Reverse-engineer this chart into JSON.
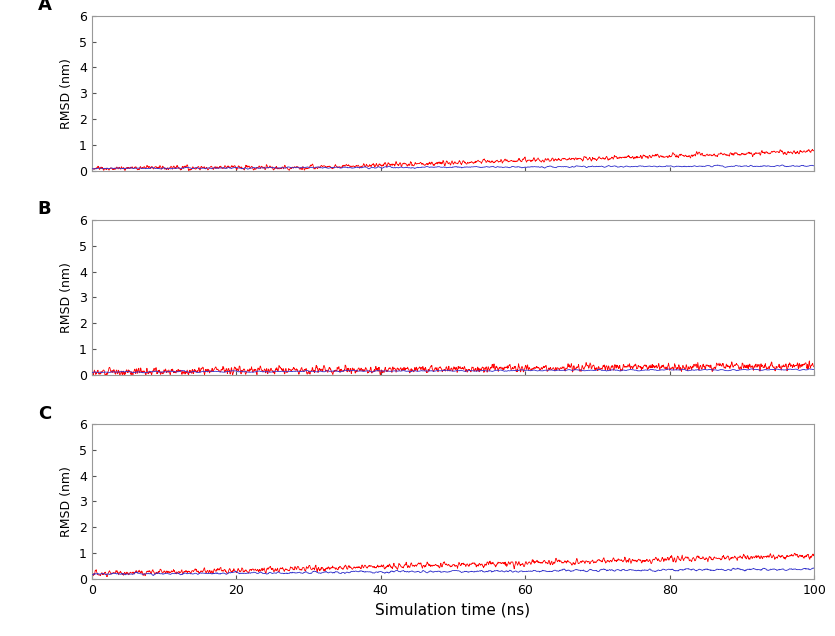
{
  "xlabel": "Simulation time (ns)",
  "ylabel": "RMSD (nm)",
  "xlim": [
    0,
    100
  ],
  "ylim": [
    0,
    6
  ],
  "xticks": [
    0,
    20,
    40,
    60,
    80,
    100
  ],
  "yticks": [
    0,
    1,
    2,
    3,
    4,
    5,
    6
  ],
  "panel_labels": [
    "A",
    "B",
    "C"
  ],
  "red_color": "#ff0000",
  "blue_color": "#3333cc",
  "linewidth": 0.6,
  "n_points": 2000,
  "panels": [
    {
      "label": "A",
      "blue_base": 0.08,
      "blue_end": 0.18,
      "blue_noise": 0.04,
      "blue_smooth": 8,
      "red_base": 0.08,
      "red_end": 0.75,
      "red_noise": 0.08,
      "red_smooth": 4,
      "red_transition_point": 0.25
    },
    {
      "label": "B",
      "blue_base": 0.1,
      "blue_end": 0.2,
      "blue_noise": 0.04,
      "blue_smooth": 10,
      "red_base": 0.1,
      "red_end": 0.35,
      "red_noise": 0.12,
      "red_smooth": 3,
      "red_transition_point": 0.0
    },
    {
      "label": "C",
      "blue_base": 0.18,
      "blue_end": 0.38,
      "blue_noise": 0.06,
      "blue_smooth": 8,
      "red_base": 0.18,
      "red_end": 0.9,
      "red_noise": 0.1,
      "red_smooth": 4,
      "red_transition_point": 0.0
    }
  ],
  "figsize": [
    8.35,
    6.36
  ],
  "dpi": 100,
  "background_color": "#ffffff",
  "spine_color": "#999999",
  "tick_color": "#555555"
}
